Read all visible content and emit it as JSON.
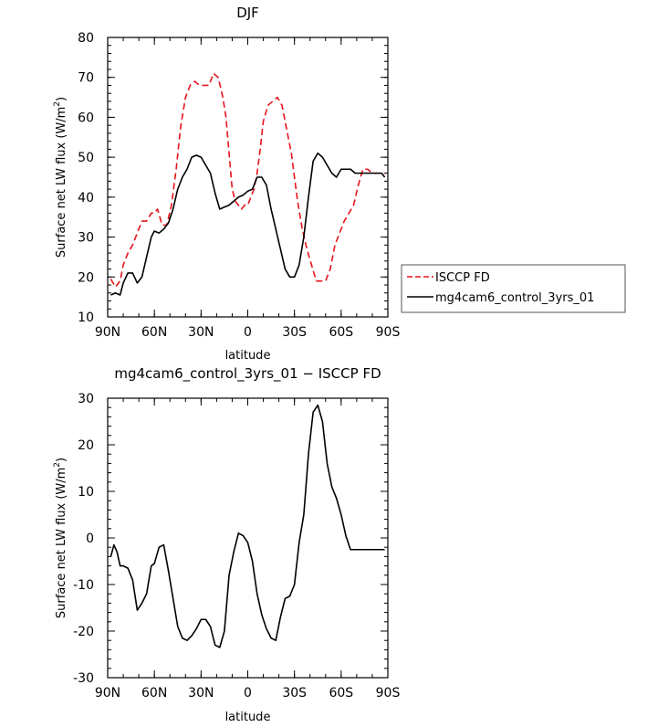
{
  "chart_data": [
    {
      "type": "line",
      "title": "DJF",
      "xlabel": "latitude",
      "ylabel": "Surface net LW flux (W/m²)",
      "ylabel_main": "Surface net LW flux (W/m",
      "ylabel_sup": "2",
      "ylabel_close": ")",
      "xlim": [
        -90,
        90
      ],
      "ylim": [
        10,
        80
      ],
      "xticks": [
        {
          "value": -90,
          "label": "90N"
        },
        {
          "value": -60,
          "label": "60N"
        },
        {
          "value": -30,
          "label": "30N"
        },
        {
          "value": 0,
          "label": "0"
        },
        {
          "value": 30,
          "label": "30S"
        },
        {
          "value": 60,
          "label": "60S"
        },
        {
          "value": 90,
          "label": "90S"
        }
      ],
      "yticks": [
        10,
        20,
        30,
        40,
        50,
        60,
        70,
        80
      ],
      "legend_position": "right",
      "series": [
        {
          "name": "ISCCP FD",
          "color": "#e8141b",
          "dash": "dashed",
          "x": [
            -88,
            -85,
            -82,
            -80,
            -77,
            -74,
            -71,
            -68,
            -65,
            -62,
            -60,
            -58,
            -55,
            -52,
            -49,
            -46,
            -43,
            -40,
            -37,
            -34,
            -31,
            -28,
            -25,
            -22,
            -19,
            -16,
            -14,
            -12,
            -10,
            -8,
            -6,
            -4,
            -2,
            0,
            2,
            4,
            6,
            8,
            10,
            13,
            16,
            19,
            22,
            25,
            28,
            30,
            32,
            35,
            38,
            41,
            44,
            47,
            50,
            53,
            56,
            59,
            62,
            65,
            68,
            71,
            74,
            77,
            80,
            83,
            86,
            88
          ],
          "y": [
            19.5,
            17.5,
            19,
            23,
            26,
            28,
            31,
            34,
            34,
            36,
            36,
            37,
            33,
            33,
            38,
            47,
            58,
            65,
            68,
            69,
            68,
            68,
            68,
            71,
            70,
            65,
            60,
            51,
            42,
            39,
            38,
            37,
            38,
            38,
            40,
            42,
            46,
            52,
            59,
            63,
            64,
            65,
            63,
            57,
            51,
            45,
            39,
            32,
            27,
            23,
            19,
            19,
            19,
            22,
            28,
            31,
            34,
            36,
            38,
            43,
            47,
            47,
            46,
            46,
            46,
            46
          ],
          "x_shift": 0
        },
        {
          "name": "mg4cam6_control_3yrs_01",
          "color": "#000000",
          "dash": "solid",
          "x": [
            -88,
            -85,
            -82,
            -80,
            -77,
            -74,
            -71,
            -68,
            -65,
            -62,
            -60,
            -57,
            -54,
            -51,
            -48,
            -45,
            -42,
            -39,
            -36,
            -33,
            -30,
            -27,
            -24,
            -21,
            -18,
            -15,
            -12,
            -9,
            -6,
            -3,
            0,
            3,
            6,
            9,
            12,
            15,
            18,
            21,
            24,
            27,
            30,
            33,
            36,
            39,
            42,
            45,
            48,
            51,
            54,
            57,
            60,
            63,
            66,
            69,
            72,
            75,
            78,
            81,
            84,
            86,
            88
          ],
          "y": [
            15.5,
            16,
            15.5,
            18.5,
            21,
            21,
            18.5,
            20,
            25,
            30,
            31.5,
            31,
            32,
            33.5,
            37,
            42,
            45,
            47,
            50,
            50.5,
            50,
            48,
            46,
            41,
            37,
            37.5,
            38,
            39,
            40,
            40.5,
            41.5,
            42,
            45,
            45,
            43,
            37,
            32,
            27,
            22,
            20,
            20,
            23,
            30,
            40,
            49,
            51,
            50,
            48,
            46,
            45,
            47,
            47,
            47,
            46,
            46,
            46,
            46,
            46,
            46,
            46,
            45
          ],
          "x_shift": 0
        }
      ]
    },
    {
      "type": "line",
      "title": "mg4cam6_control_3yrs_01 − ISCCP FD",
      "xlabel": "latitude",
      "ylabel": "Surface net LW flux (W/m²)",
      "ylabel_main": "Surface net LW flux (W/m",
      "ylabel_sup": "2",
      "ylabel_close": ")",
      "xlim": [
        -90,
        90
      ],
      "ylim": [
        -30,
        30
      ],
      "xticks": [
        {
          "value": -90,
          "label": "90N"
        },
        {
          "value": -60,
          "label": "60N"
        },
        {
          "value": -30,
          "label": "30N"
        },
        {
          "value": 0,
          "label": "0"
        },
        {
          "value": 30,
          "label": "30S"
        },
        {
          "value": 60,
          "label": "60S"
        },
        {
          "value": 90,
          "label": "90S"
        }
      ],
      "yticks": [
        -30,
        -20,
        -10,
        0,
        10,
        20,
        30
      ],
      "series": [
        {
          "name": "",
          "color": "#000000",
          "dash": "solid",
          "x": [
            -88,
            -86,
            -84,
            -82,
            -80,
            -77,
            -74,
            -71,
            -68,
            -65,
            -62,
            -60,
            -57,
            -54,
            -51,
            -48,
            -45,
            -42,
            -39,
            -36,
            -33,
            -30,
            -27,
            -24,
            -21,
            -18,
            -15,
            -12,
            -9,
            -6,
            -3,
            0,
            3,
            6,
            9,
            12,
            15,
            18,
            21,
            24,
            27,
            30,
            33,
            36,
            39,
            42,
            45,
            48,
            51,
            54,
            57,
            60,
            63,
            66,
            69,
            72,
            75,
            78,
            81,
            84,
            86,
            88
          ],
          "y": [
            -4,
            -1.5,
            -3,
            -6,
            -6,
            -6.5,
            -9,
            -15.5,
            -14,
            -12,
            -6,
            -5.5,
            -2,
            -1.5,
            -7,
            -13,
            -19,
            -21.5,
            -22,
            -21,
            -19.5,
            -17.5,
            -17.5,
            -19,
            -23,
            -23.5,
            -20,
            -8,
            -3,
            1,
            0.5,
            -1,
            -5,
            -12,
            -16.5,
            -19.5,
            -21.5,
            -22,
            -17,
            -13,
            -12.5,
            -10,
            -1,
            5,
            18,
            27,
            28.5,
            25,
            16,
            11,
            8.5,
            5,
            0.5,
            -2.5,
            -2.5,
            -2.5,
            -2.5,
            -2.5,
            -2.5,
            -2.5,
            -2.5,
            -2.5
          ],
          "x_shift": 0
        }
      ]
    }
  ]
}
